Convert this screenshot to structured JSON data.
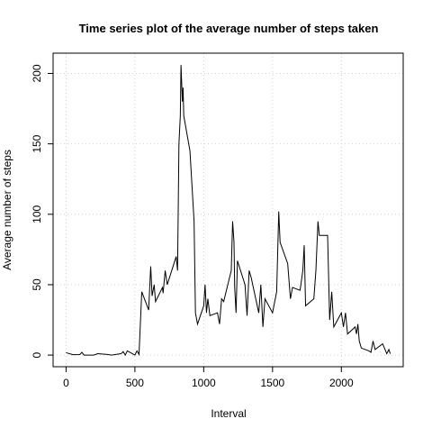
{
  "chart_data": {
    "type": "line",
    "title": "Time series plot of the average number of steps taken",
    "x_label": "Interval",
    "y_label": "Average number of steps",
    "x": [
      0,
      50,
      100,
      115,
      130,
      200,
      230,
      300,
      330,
      400,
      415,
      430,
      445,
      500,
      515,
      530,
      550,
      600,
      615,
      625,
      640,
      650,
      700,
      705,
      720,
      735,
      800,
      810,
      820,
      830,
      835,
      845,
      850,
      855,
      900,
      915,
      930,
      940,
      955,
      1000,
      1010,
      1020,
      1030,
      1045,
      1100,
      1115,
      1130,
      1145,
      1200,
      1210,
      1220,
      1225,
      1235,
      1245,
      1300,
      1315,
      1330,
      1345,
      1400,
      1415,
      1430,
      1445,
      1500,
      1530,
      1545,
      1555,
      1610,
      1630,
      1645,
      1700,
      1720,
      1730,
      1740,
      1800,
      1815,
      1830,
      1840,
      1850,
      1900,
      1915,
      1930,
      1945,
      2000,
      2015,
      2030,
      2045,
      2100,
      2110,
      2120,
      2130,
      2145,
      2200,
      2215,
      2230,
      2245,
      2300,
      2330,
      2345,
      2355
    ],
    "series": [
      {
        "name": "Average number of steps",
        "color": "#000000",
        "values": [
          1.7,
          0.3,
          0.4,
          2,
          0,
          0,
          1,
          0.5,
          0,
          1,
          2.5,
          0,
          3,
          0,
          3,
          0.5,
          45,
          32,
          63,
          42,
          50,
          38,
          48,
          44,
          60,
          50,
          70,
          60,
          150,
          170,
          206,
          180,
          190,
          170,
          145,
          120,
          95,
          30,
          22,
          35,
          50,
          30,
          40,
          28,
          30,
          22,
          40,
          38,
          60,
          95,
          80,
          48,
          30,
          67,
          50,
          28,
          60,
          55,
          30,
          50,
          20,
          40,
          30,
          45,
          102,
          80,
          65,
          40,
          48,
          46,
          60,
          78,
          35,
          40,
          60,
          95,
          85,
          85,
          85,
          25,
          45,
          20,
          30,
          20,
          30,
          15,
          20,
          15,
          22,
          10,
          5,
          3,
          2,
          10,
          4,
          8,
          1,
          4,
          1
        ]
      }
    ],
    "xlim": [
      -94.2,
      2449.2
    ],
    "ylim": [
      -8.25,
      214.4
    ],
    "xticks": [
      0,
      500,
      1000,
      1500,
      2000
    ],
    "yticks": [
      0,
      50,
      100,
      150,
      200
    ],
    "grid": true
  }
}
